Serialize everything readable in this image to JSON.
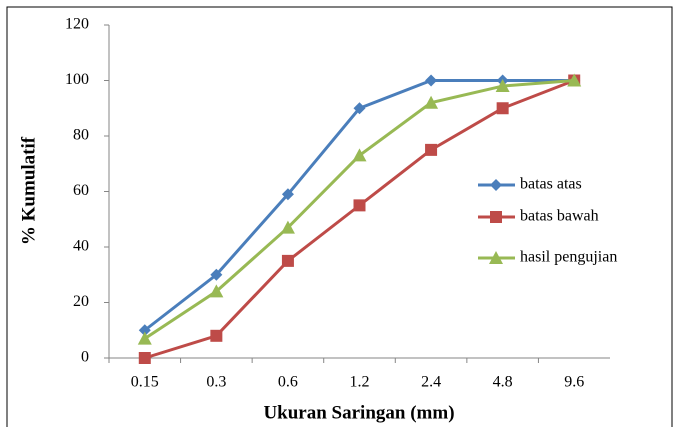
{
  "chart_data": {
    "type": "line",
    "x_label": "Ukuran Saringan (mm)",
    "y_label": "% Kumulatif",
    "categories": [
      "0.15",
      "0.3",
      "0.6",
      "1.2",
      "2.4",
      "4.8",
      "9.6"
    ],
    "series": [
      {
        "name": "batas atas",
        "color": "#4a7ebb",
        "marker": "diamond",
        "values": [
          10,
          30,
          59,
          90,
          100,
          100,
          100
        ]
      },
      {
        "name": "batas bawah",
        "color": "#be4b48",
        "marker": "square",
        "values": [
          0,
          8,
          35,
          55,
          75,
          90,
          100
        ]
      },
      {
        "name": "hasil pengujian",
        "color": "#98b954",
        "marker": "triangle",
        "values": [
          7,
          24,
          47,
          73,
          92,
          98,
          100
        ]
      }
    ],
    "ylim": [
      0,
      120
    ],
    "yticks": [
      0,
      20,
      40,
      60,
      80,
      100,
      120
    ],
    "grid": false,
    "legend": "right"
  }
}
